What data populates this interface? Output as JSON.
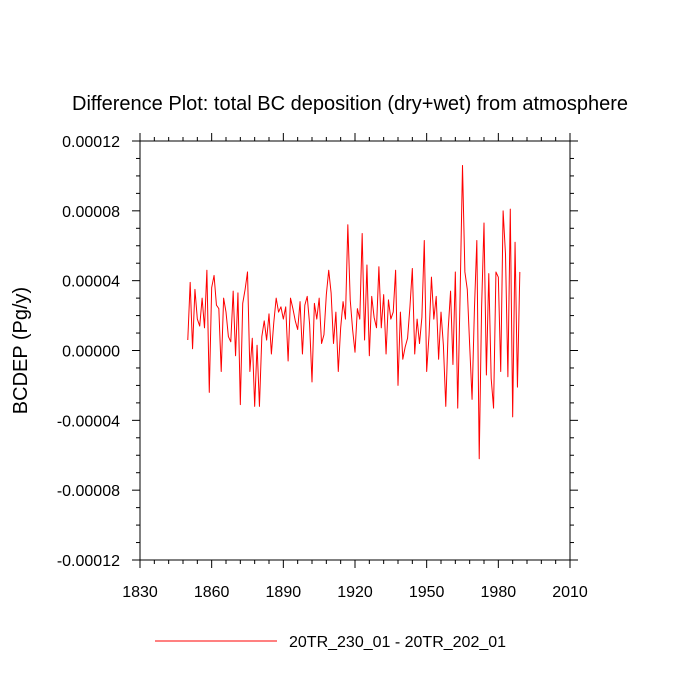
{
  "chart_data": {
    "type": "line",
    "title": "Difference Plot: total BC deposition (dry+wet) from atmosphere",
    "xlabel": "",
    "ylabel": "BCDEP  (Pg/y)",
    "xlim": [
      1830,
      2010
    ],
    "ylim": [
      -0.00012,
      0.00012
    ],
    "x_ticks": [
      1830,
      1860,
      1890,
      1920,
      1950,
      1980,
      2010
    ],
    "x_tick_labels": [
      "1830",
      "1860",
      "1890",
      "1920",
      "1950",
      "1980",
      "2010"
    ],
    "y_ticks": [
      -0.00012,
      -8e-05,
      -4e-05,
      0.0,
      4e-05,
      8e-05,
      0.00012
    ],
    "y_tick_labels": [
      "-0.00012",
      "-0.00008",
      "-0.00004",
      "0.00000",
      "0.00004",
      "0.00008",
      "0.00012"
    ],
    "grid": false,
    "legend_position": "bottom-center",
    "series": [
      {
        "name": "20TR_230_01 - 20TR_202_01",
        "color": "#ff0000",
        "x_start": 1850,
        "x_step": 1,
        "values": [
          6e-06,
          3.9e-05,
          1e-06,
          3.5e-05,
          1.8e-05,
          1.4e-05,
          3e-05,
          1.3e-05,
          4.6e-05,
          -2.4e-05,
          3.6e-05,
          4.3e-05,
          2.6e-05,
          2.4e-05,
          -1.2e-05,
          3e-05,
          2.2e-05,
          8e-06,
          5e-06,
          3.4e-05,
          -3e-06,
          3.3e-05,
          -3.1e-05,
          2.7e-05,
          3.5e-05,
          4.5e-05,
          -1.2e-05,
          7e-06,
          -3.2e-05,
          3e-06,
          -3.2e-05,
          8e-06,
          1.7e-05,
          6e-06,
          2.1e-05,
          -2e-06,
          1.6e-05,
          3e-05,
          2.2e-05,
          2.5e-05,
          1.8e-05,
          2.5e-05,
          -6e-06,
          3e-05,
          2.4e-05,
          1.7e-05,
          1.2e-05,
          2.8e-05,
          -2e-06,
          2.6e-05,
          3.1e-05,
          1.5e-05,
          -1.8e-05,
          2.7e-05,
          1.8e-05,
          3e-05,
          4e-06,
          9e-06,
          3.2e-05,
          4.6e-05,
          3.3e-05,
          4e-06,
          2.2e-05,
          -1.2e-05,
          1.3e-05,
          2.8e-05,
          1.8e-05,
          7.2e-05,
          2.9e-05,
          1.2e-05,
          -1e-06,
          2.4e-05,
          1.8e-05,
          6.7e-05,
          6e-06,
          4.9e-05,
          -3e-06,
          3.1e-05,
          1.9e-05,
          1.3e-05,
          4.8e-05,
          1.3e-05,
          3.2e-05,
          -2e-06,
          2.9e-05,
          1.8e-05,
          2.2e-05,
          4.6e-05,
          -2e-05,
          2.2e-05,
          -5e-06,
          2e-06,
          7e-06,
          2.5e-05,
          4.7e-05,
          -2e-06,
          1.8e-05,
          4e-06,
          1.9e-05,
          6.3e-05,
          -1.2e-05,
          9e-06,
          4.2e-05,
          1.8e-05,
          3.1e-05,
          -5e-06,
          2.2e-05,
          3e-06,
          -3.2e-05,
          1.2e-05,
          3.4e-05,
          -8e-06,
          4.5e-05,
          -3.3e-05,
          3.2e-05,
          0.000106,
          4.5e-05,
          3.5e-05,
          3e-06,
          -2.8e-05,
          2.4e-05,
          6.3e-05,
          -6.2e-05,
          2.5e-05,
          7.3e-05,
          -1.4e-05,
          4.4e-05,
          -1.6e-05,
          -3.3e-05,
          4.5e-05,
          4.2e-05,
          -1.2e-05,
          8e-05,
          5.5e-05,
          -1.5e-05,
          8.1e-05,
          -3.8e-05,
          6.2e-05,
          -2.1e-05,
          4.5e-05
        ]
      }
    ]
  }
}
